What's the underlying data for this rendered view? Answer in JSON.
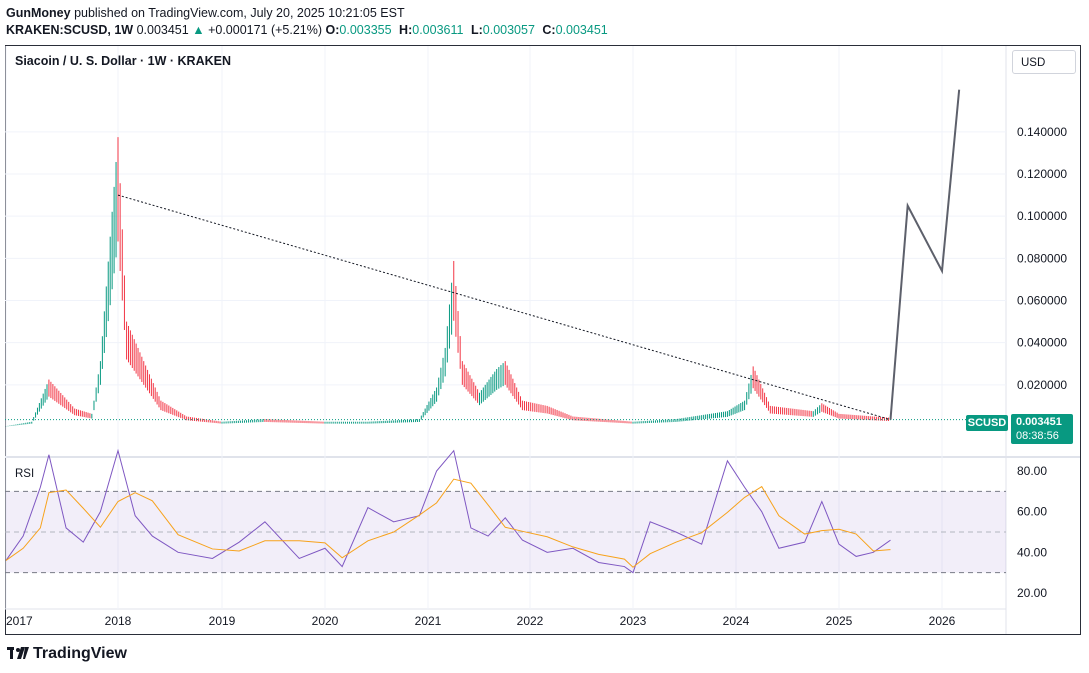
{
  "header": {
    "author": "GunMoney",
    "published_text": "published on TradingView.com, July 20, 2025 10:21:05 EST",
    "symbol": "KRAKEN:SCUSD, 1W",
    "last": "0.003451",
    "change": "+0.000171 (+5.21%)",
    "o_label": "O:",
    "o": "0.003355",
    "h_label": "H:",
    "h": "0.003611",
    "l_label": "L:",
    "l": "0.003057",
    "c_label": "C:",
    "c": "0.003451"
  },
  "chart": {
    "title": "Siacoin / U. S. Dollar · 1W · KRAKEN",
    "currency": "USD",
    "rsi_label": "RSI",
    "price_tag_symbol": "SCUSD",
    "price_tag_value": "0.003451",
    "price_tag_countdown": "08:38:56",
    "price_ticks": [
      "0.140000",
      "0.120000",
      "0.100000",
      "0.080000",
      "0.060000",
      "0.040000",
      "0.020000"
    ],
    "rsi_ticks": [
      "80.00",
      "60.00",
      "40.00",
      "20.00"
    ],
    "years": [
      "2017",
      "2018",
      "2019",
      "2020",
      "2021",
      "2022",
      "2023",
      "2024",
      "2025",
      "2026"
    ],
    "accent": "#089981",
    "up_color": "#089981",
    "down_color": "#f23645"
  },
  "chart_data": {
    "type": "line",
    "title": "Siacoin / U. S. Dollar · 1W · KRAKEN",
    "xlabel": "",
    "ylabel": "",
    "ylim": [
      0,
      0.145
    ],
    "series": [
      {
        "name": "Siacoin / U. S. Dollar",
        "x": [
          "2017-01",
          "2017-04",
          "2017-06",
          "2017-09",
          "2017-11",
          "2017-12",
          "2018-01",
          "2018-02",
          "2018-04",
          "2018-06",
          "2018-09",
          "2019-01",
          "2019-06",
          "2020-01",
          "2020-06",
          "2020-12",
          "2021-02",
          "2021-03",
          "2021-04",
          "2021-05",
          "2021-07",
          "2021-09",
          "2021-10",
          "2021-12",
          "2022-03",
          "2022-06",
          "2023-01",
          "2023-06",
          "2023-12",
          "2024-02",
          "2024-03",
          "2024-05",
          "2024-10",
          "2024-11",
          "2025-01",
          "2025-07"
        ],
        "y": [
          0.0003,
          0.002,
          0.018,
          0.007,
          0.005,
          0.025,
          0.11,
          0.04,
          0.025,
          0.01,
          0.004,
          0.002,
          0.003,
          0.002,
          0.002,
          0.003,
          0.015,
          0.03,
          0.063,
          0.025,
          0.013,
          0.022,
          0.025,
          0.01,
          0.008,
          0.004,
          0.002,
          0.003,
          0.006,
          0.01,
          0.023,
          0.008,
          0.006,
          0.009,
          0.005,
          0.0035
        ]
      }
    ],
    "trendline": {
      "x": [
        "2018-01",
        "2025-07"
      ],
      "y": [
        0.11,
        0.0035
      ]
    },
    "projection": {
      "x": [
        "2025-07",
        "2025-09",
        "2026-01",
        "2026-03"
      ],
      "y": [
        0.0035,
        0.105,
        0.074,
        0.16
      ]
    },
    "rsi": {
      "ylim": [
        10,
        90
      ],
      "bands": [
        30,
        50,
        70
      ],
      "x": [
        "2017-01",
        "2017-03",
        "2017-05",
        "2017-06",
        "2017-08",
        "2017-10",
        "2017-12",
        "2018-01",
        "2018-03",
        "2018-05",
        "2018-08",
        "2018-12",
        "2019-03",
        "2019-06",
        "2019-10",
        "2020-01",
        "2020-03",
        "2020-06",
        "2020-09",
        "2020-12",
        "2021-02",
        "2021-04",
        "2021-06",
        "2021-08",
        "2021-10",
        "2021-12",
        "2022-03",
        "2022-06",
        "2022-09",
        "2022-12",
        "2023-01",
        "2023-03",
        "2023-06",
        "2023-09",
        "2023-12",
        "2024-02",
        "2024-04",
        "2024-06",
        "2024-09",
        "2024-11",
        "2025-01",
        "2025-03",
        "2025-05",
        "2025-07"
      ],
      "y": [
        36,
        48,
        72,
        88,
        52,
        45,
        60,
        90,
        58,
        48,
        40,
        37,
        45,
        55,
        37,
        42,
        33,
        62,
        55,
        58,
        80,
        90,
        52,
        48,
        57,
        46,
        40,
        42,
        35,
        33,
        30,
        55,
        50,
        44,
        85,
        72,
        60,
        42,
        45,
        65,
        44,
        38,
        40,
        46
      ]
    }
  }
}
